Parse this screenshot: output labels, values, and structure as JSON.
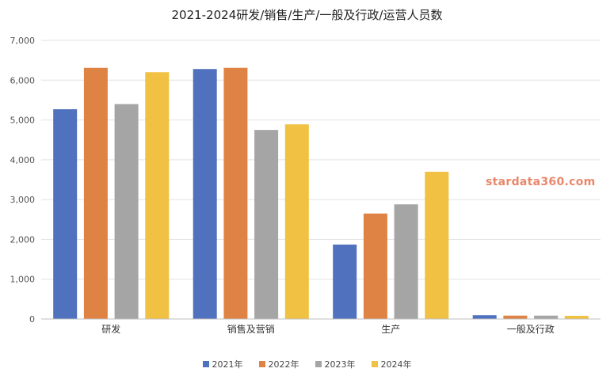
{
  "chart_data": {
    "type": "bar",
    "title": "2021-2024研发/销售/生产/一般及行政/运营人员数",
    "categories": [
      "研发",
      "销售及营销",
      "生产",
      "一般及行政"
    ],
    "series": [
      {
        "name": "2021年",
        "color": "#4f71be",
        "values": [
          5270,
          6280,
          1870,
          95
        ]
      },
      {
        "name": "2022年",
        "color": "#df8344",
        "values": [
          6310,
          6310,
          2650,
          85
        ]
      },
      {
        "name": "2023年",
        "color": "#a5a5a5",
        "values": [
          5400,
          4750,
          2880,
          85
        ]
      },
      {
        "name": "2024年",
        "color": "#f1c143",
        "values": [
          6200,
          4890,
          3700,
          80
        ]
      }
    ],
    "ylim": [
      0,
      7000
    ],
    "yticks": [
      "0",
      "1,000",
      "2,000",
      "3,000",
      "4,000",
      "5,000",
      "6,000",
      "7,000"
    ],
    "grid": true,
    "legend_position": "bottom",
    "xlabel": "",
    "ylabel": ""
  },
  "watermark": "stardata360.com"
}
